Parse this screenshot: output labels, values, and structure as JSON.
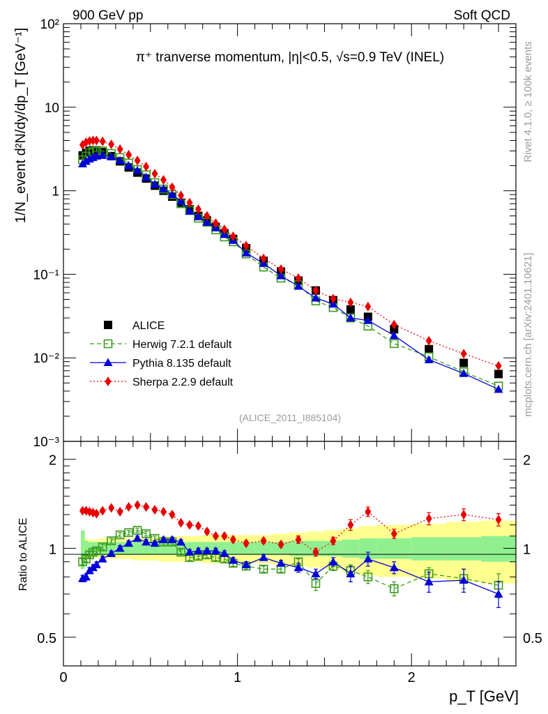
{
  "header": {
    "left": "900 GeV pp",
    "right": "Soft QCD"
  },
  "side_labels": {
    "rivet": "Rivet 4.1.0, ≥ 100k events",
    "mcplots": "mcplots.cern.ch [arXiv:2401.10621]"
  },
  "colors": {
    "alice": "#000000",
    "herwig": "#3a9a1e",
    "pythia": "#0000d8",
    "sherpa": "#e80000",
    "band_inner": "#90f090",
    "band_outer": "#ffff90"
  },
  "chart_data": [
    {
      "type": "scatter",
      "panel": "main",
      "title": "π⁺ tranverse momentum, |η|<0.5, √s=0.9 TeV (INEL)",
      "ylabel": "1/N_event d²N/dy/dp_T [GeV⁻¹]",
      "yscale": "log",
      "ylim": [
        0.001,
        100
      ],
      "xlim": [
        0,
        2.6
      ],
      "y_tick_labels": [
        "10⁻³",
        "10⁻²",
        "10⁻¹",
        "1",
        "10",
        "10²"
      ],
      "annotation": "(ALICE_2011_I885104)",
      "x": [
        0.11,
        0.13,
        0.15,
        0.17,
        0.19,
        0.225,
        0.275,
        0.325,
        0.375,
        0.425,
        0.475,
        0.525,
        0.575,
        0.625,
        0.675,
        0.725,
        0.775,
        0.825,
        0.875,
        0.925,
        0.975,
        1.05,
        1.15,
        1.25,
        1.35,
        1.45,
        1.55,
        1.65,
        1.75,
        1.9,
        2.1,
        2.3,
        2.5
      ],
      "series": [
        {
          "name": "ALICE",
          "style": "square",
          "values": [
            2.65,
            2.85,
            3.0,
            3.05,
            3.05,
            2.9,
            2.6,
            2.25,
            1.9,
            1.65,
            1.4,
            1.15,
            1.0,
            0.85,
            0.72,
            0.6,
            0.5,
            0.44,
            0.37,
            0.31,
            0.265,
            0.205,
            0.145,
            0.108,
            0.084,
            0.064,
            0.049,
            0.038,
            0.031,
            0.022,
            0.0127,
            0.0087,
            0.0064
          ]
        },
        {
          "name": "Herwig 7.2.1 default",
          "style": "open-square-dashed",
          "values": [
            2.35,
            2.6,
            2.85,
            2.95,
            3.0,
            3.0,
            2.8,
            2.5,
            2.15,
            1.8,
            1.55,
            1.25,
            1.05,
            0.9,
            0.7,
            0.58,
            0.47,
            0.42,
            0.34,
            0.28,
            0.245,
            0.175,
            0.122,
            0.09,
            0.075,
            0.048,
            0.04,
            0.03,
            0.024,
            0.0148,
            0.0103,
            0.0068,
            0.0046
          ]
        },
        {
          "name": "Pythia 8.135 default",
          "style": "triangle-solid",
          "values": [
            2.1,
            2.25,
            2.4,
            2.5,
            2.6,
            2.65,
            2.55,
            2.3,
            2.0,
            1.75,
            1.45,
            1.2,
            1.05,
            0.9,
            0.75,
            0.57,
            0.49,
            0.42,
            0.36,
            0.3,
            0.255,
            0.18,
            0.135,
            0.096,
            0.072,
            0.052,
            0.044,
            0.03,
            0.028,
            0.0185,
            0.0095,
            0.0065,
            0.0042
          ]
        },
        {
          "name": "Sherpa 2.2.9 default",
          "style": "diamond-dotted",
          "values": [
            3.55,
            3.8,
            3.95,
            4.0,
            4.0,
            3.9,
            3.6,
            3.15,
            2.7,
            2.3,
            1.95,
            1.6,
            1.35,
            1.1,
            0.88,
            0.72,
            0.6,
            0.5,
            0.41,
            0.345,
            0.285,
            0.22,
            0.155,
            0.115,
            0.09,
            0.064,
            0.051,
            0.046,
            0.041,
            0.025,
            0.016,
            0.0112,
            0.008
          ]
        }
      ],
      "legend": [
        {
          "label": "ALICE",
          "style": "square"
        },
        {
          "label": "Herwig 7.2.1 default",
          "style": "open-square-dashed"
        },
        {
          "label": "Pythia 8.135 default",
          "style": "triangle-solid"
        },
        {
          "label": "Sherpa 2.2.9 default",
          "style": "diamond-dotted"
        }
      ]
    },
    {
      "type": "scatter",
      "panel": "ratio",
      "ylabel": "Ratio to ALICE",
      "xlabel": "p_T [GeV]",
      "ylim": [
        0.4,
        2.3
      ],
      "xlim": [
        0,
        2.6
      ],
      "x_tick_labels": [
        "0",
        "1",
        "2"
      ],
      "y_tick_labels": [
        "0.5",
        "1",
        "2"
      ],
      "x": [
        0.11,
        0.13,
        0.15,
        0.17,
        0.19,
        0.225,
        0.275,
        0.325,
        0.375,
        0.425,
        0.475,
        0.525,
        0.575,
        0.625,
        0.675,
        0.725,
        0.775,
        0.825,
        0.875,
        0.925,
        0.975,
        1.05,
        1.15,
        1.25,
        1.35,
        1.45,
        1.55,
        1.65,
        1.75,
        1.9,
        2.1,
        2.3,
        2.5
      ],
      "bin_edges": [
        0.1,
        0.12,
        0.14,
        0.16,
        0.18,
        0.2,
        0.25,
        0.3,
        0.35,
        0.4,
        0.45,
        0.5,
        0.55,
        0.6,
        0.65,
        0.7,
        0.75,
        0.8,
        0.85,
        0.9,
        0.95,
        1.0,
        1.1,
        1.2,
        1.3,
        1.4,
        1.5,
        1.6,
        1.7,
        1.8,
        2.0,
        2.2,
        2.4,
        2.6
      ],
      "band_inner": [
        0.15,
        0.06,
        0.05,
        0.05,
        0.05,
        0.05,
        0.05,
        0.05,
        0.05,
        0.05,
        0.05,
        0.05,
        0.05,
        0.05,
        0.05,
        0.05,
        0.05,
        0.05,
        0.05,
        0.05,
        0.05,
        0.05,
        0.05,
        0.05,
        0.06,
        0.06,
        0.06,
        0.07,
        0.08,
        0.08,
        0.09,
        0.09,
        0.1
      ],
      "band_outer": [
        0.15,
        0.08,
        0.07,
        0.07,
        0.07,
        0.08,
        0.08,
        0.08,
        0.08,
        0.09,
        0.09,
        0.09,
        0.1,
        0.1,
        0.1,
        0.1,
        0.1,
        0.11,
        0.11,
        0.11,
        0.11,
        0.11,
        0.11,
        0.12,
        0.13,
        0.14,
        0.15,
        0.17,
        0.19,
        0.2,
        0.21,
        0.23,
        0.24
      ],
      "series": [
        {
          "name": "Herwig 7.2.1 default",
          "style": "open-square-dashed",
          "values": [
            0.9,
            0.92,
            0.95,
            0.97,
            0.98,
            1.01,
            1.06,
            1.11,
            1.13,
            1.15,
            1.12,
            1.08,
            1.05,
            1.05,
            0.97,
            0.93,
            0.94,
            0.95,
            0.93,
            0.92,
            0.89,
            0.87,
            0.85,
            0.85,
            0.9,
            0.76,
            0.87,
            0.84,
            0.8,
            0.73,
            0.82,
            0.79,
            0.75
          ],
          "errors": [
            0.02,
            0.02,
            0.02,
            0.02,
            0.02,
            0.02,
            0.02,
            0.02,
            0.02,
            0.02,
            0.02,
            0.02,
            0.02,
            0.02,
            0.02,
            0.02,
            0.02,
            0.02,
            0.02,
            0.02,
            0.02,
            0.02,
            0.02,
            0.02,
            0.02,
            0.04,
            0.03,
            0.04,
            0.04,
            0.04,
            0.04,
            0.06,
            0.07
          ]
        },
        {
          "name": "Pythia 8.135 default",
          "style": "triangle-solid",
          "values": [
            0.79,
            0.8,
            0.84,
            0.86,
            0.88,
            0.92,
            0.96,
            1.0,
            1.04,
            1.08,
            1.05,
            1.04,
            1.07,
            1.07,
            1.05,
            0.97,
            0.98,
            0.98,
            0.98,
            0.96,
            0.91,
            0.88,
            0.93,
            0.89,
            0.86,
            0.82,
            0.9,
            0.82,
            0.92,
            0.86,
            0.77,
            0.78,
            0.7
          ],
          "errors": [
            0.02,
            0.02,
            0.02,
            0.02,
            0.02,
            0.02,
            0.02,
            0.02,
            0.02,
            0.02,
            0.02,
            0.02,
            0.02,
            0.02,
            0.02,
            0.02,
            0.02,
            0.02,
            0.02,
            0.02,
            0.02,
            0.02,
            0.02,
            0.02,
            0.03,
            0.03,
            0.03,
            0.05,
            0.05,
            0.04,
            0.06,
            0.07,
            0.07
          ]
        },
        {
          "name": "Sherpa 2.2.9 default",
          "style": "diamond-dotted",
          "values": [
            1.34,
            1.34,
            1.33,
            1.32,
            1.31,
            1.34,
            1.37,
            1.33,
            1.38,
            1.4,
            1.38,
            1.35,
            1.33,
            1.3,
            1.22,
            1.2,
            1.19,
            1.14,
            1.1,
            1.1,
            1.07,
            1.04,
            1.06,
            1.03,
            1.07,
            0.97,
            1.06,
            1.2,
            1.33,
            1.12,
            1.26,
            1.3,
            1.25
          ],
          "errors": [
            0.02,
            0.02,
            0.02,
            0.02,
            0.02,
            0.02,
            0.02,
            0.02,
            0.02,
            0.02,
            0.02,
            0.02,
            0.02,
            0.02,
            0.02,
            0.02,
            0.02,
            0.02,
            0.02,
            0.02,
            0.02,
            0.02,
            0.02,
            0.02,
            0.03,
            0.03,
            0.03,
            0.05,
            0.05,
            0.04,
            0.06,
            0.06,
            0.06
          ]
        }
      ]
    }
  ]
}
